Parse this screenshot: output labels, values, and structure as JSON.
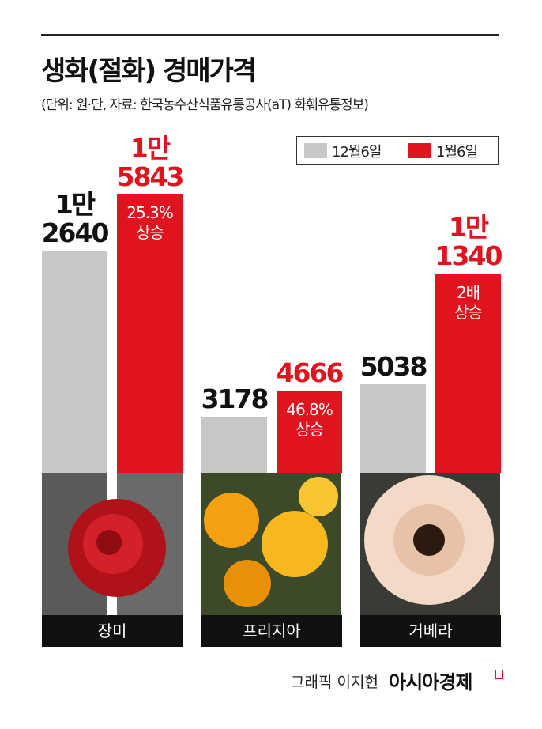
{
  "chart_data": {
    "type": "bar",
    "title": "생화(절화) 경매가격",
    "subtitle": "(단위: 원·단, 자료: 한국농수산식품유통공사(aT) 화훼유통정보)",
    "categories": [
      "장미",
      "프리지아",
      "거베라"
    ],
    "series": [
      {
        "name": "12월6일",
        "color": "#c8c8c8",
        "values": [
          12640,
          3178,
          5038
        ],
        "value_labels": [
          "1만\n2640",
          "3178",
          "5038"
        ]
      },
      {
        "name": "1월6일",
        "color": "#e0141e",
        "values": [
          15843,
          4666,
          11340
        ],
        "value_labels": [
          "1만\n5843",
          "4666",
          "1만\n1340"
        ]
      }
    ],
    "annotations": [
      "25.3%\n상승",
      "46.8%\n상승",
      "2배\n상승"
    ],
    "credit": "그래픽 이지현",
    "brand": "아시아경제"
  }
}
